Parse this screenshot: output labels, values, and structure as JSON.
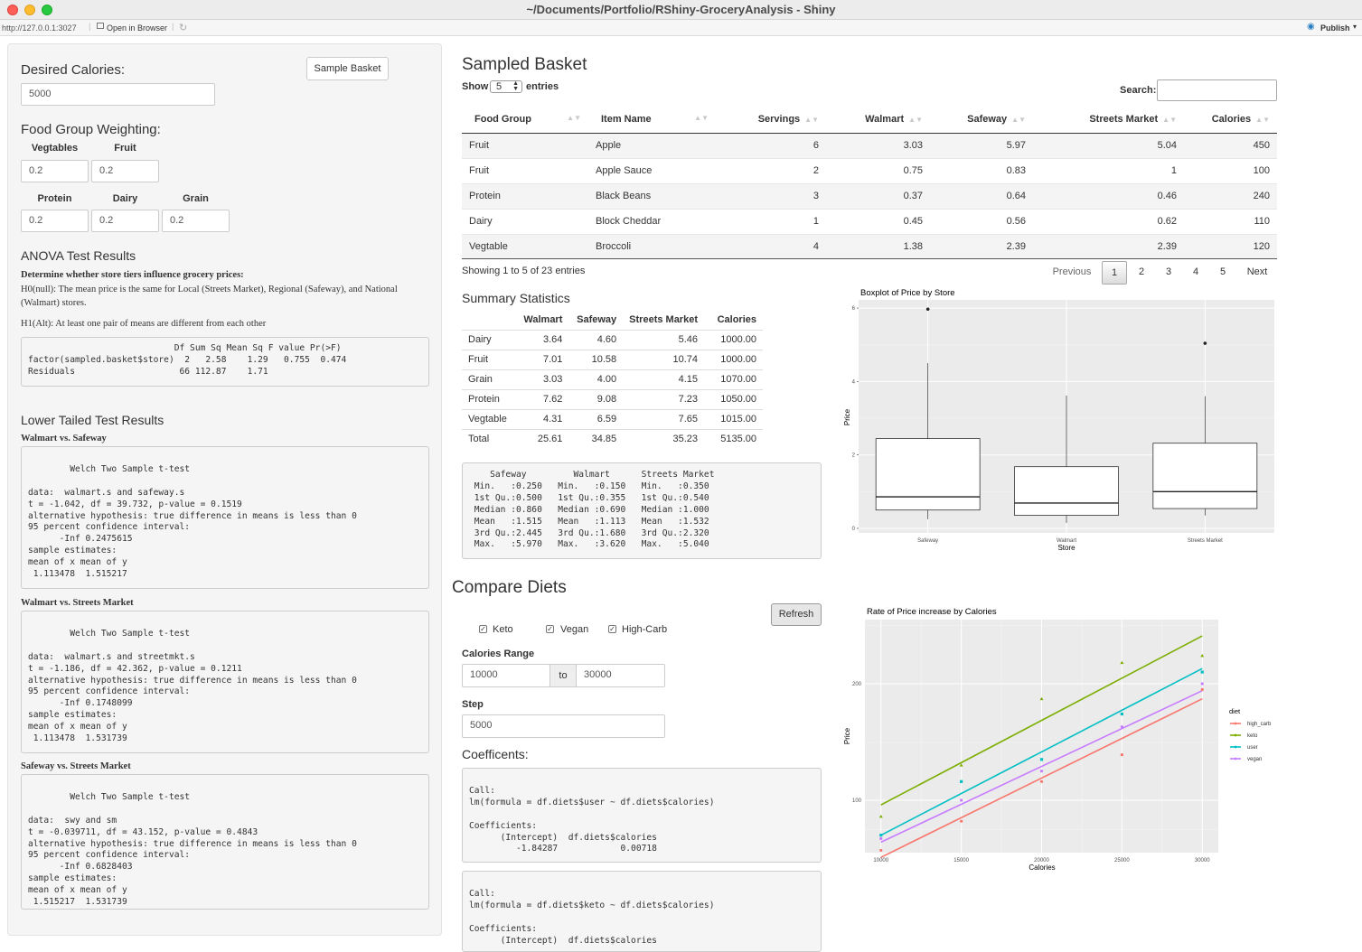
{
  "window": {
    "title": "~/Documents/Portfolio/RShiny-GroceryAnalysis - Shiny"
  },
  "toolbar": {
    "url": "http://127.0.0.1:3027",
    "open_browser": "Open in Browser",
    "publish": "Publish"
  },
  "sidebar": {
    "desired_calories_label": "Desired Calories:",
    "desired_calories_value": "5000",
    "sample_basket_button": "Sample Basket",
    "food_group_heading": "Food Group Weighting:",
    "weights": [
      {
        "label": "Vegtables",
        "value": "0.2"
      },
      {
        "label": "Fruit",
        "value": "0.2"
      },
      {
        "label": "Protein",
        "value": "0.2"
      },
      {
        "label": "Dairy",
        "value": "0.2"
      },
      {
        "label": "Grain",
        "value": "0.2"
      }
    ],
    "anova_heading": "ANOVA Test Results",
    "anova_question": "Determine whether store tiers influence grocery prices:",
    "anova_h0": "H0(null): The mean price is the same for Local (Streets Market), Regional (Safeway), and National (Walmart) stores.",
    "anova_h1": "H1(Alt): At least one pair of means are different from each other",
    "anova_output": "                            Df Sum Sq Mean Sq F value Pr(>F)\nfactor(sampled.basket$store)  2   2.58    1.29   0.755  0.474\nResiduals                    66 112.87    1.71",
    "lower_tailed_heading": "Lower Tailed Test Results",
    "tests": [
      {
        "title": "Walmart vs. Safeway",
        "output": "\n        Welch Two Sample t-test\n\ndata:  walmart.s and safeway.s\nt = -1.042, df = 39.732, p-value = 0.1519\nalternative hypothesis: true difference in means is less than 0\n95 percent confidence interval:\n      -Inf 0.2475615\nsample estimates:\nmean of x mean of y\n 1.113478  1.515217"
      },
      {
        "title": "Walmart vs. Streets Market",
        "output": "\n        Welch Two Sample t-test\n\ndata:  walmart.s and streetmkt.s\nt = -1.186, df = 42.362, p-value = 0.1211\nalternative hypothesis: true difference in means is less than 0\n95 percent confidence interval:\n      -Inf 0.1748099\nsample estimates:\nmean of x mean of y\n 1.113478  1.531739"
      },
      {
        "title": "Safeway vs. Streets Market",
        "output": "\n        Welch Two Sample t-test\n\ndata:  swy and sm\nt = -0.039711, df = 43.152, p-value = 0.4843\nalternative hypothesis: true difference in means is less than 0\n95 percent confidence interval:\n      -Inf 0.6828403\nsample estimates:\nmean of x mean of y\n 1.515217  1.531739"
      }
    ]
  },
  "basket": {
    "heading": "Sampled Basket",
    "show_label": "Show",
    "show_value": "5",
    "entries_label": "entries",
    "search_label": "Search:",
    "columns": [
      "Food Group",
      "Item Name",
      "Servings",
      "Walmart",
      "Safeway",
      "Streets Market",
      "Calories"
    ],
    "rows": [
      [
        "Fruit",
        "Apple",
        "6",
        "3.03",
        "5.97",
        "5.04",
        "450"
      ],
      [
        "Fruit",
        "Apple Sauce",
        "2",
        "0.75",
        "0.83",
        "1",
        "100"
      ],
      [
        "Protein",
        "Black Beans",
        "3",
        "0.37",
        "0.64",
        "0.46",
        "240"
      ],
      [
        "Dairy",
        "Block Cheddar",
        "1",
        "0.45",
        "0.56",
        "0.62",
        "110"
      ],
      [
        "Vegtable",
        "Broccoli",
        "4",
        "1.38",
        "2.39",
        "2.39",
        "120"
      ]
    ],
    "info": "Showing 1 to 5 of 23 entries",
    "pagination": {
      "previous": "Previous",
      "pages": [
        "1",
        "2",
        "3",
        "4",
        "5"
      ],
      "next": "Next",
      "current": "1"
    }
  },
  "summary": {
    "heading": "Summary Statistics",
    "columns": [
      "",
      "Walmart",
      "Safeway",
      "Streets Market",
      "Calories"
    ],
    "rows": [
      [
        "Dairy",
        "3.64",
        "4.60",
        "5.46",
        "1000.00"
      ],
      [
        "Fruit",
        "7.01",
        "10.58",
        "10.74",
        "1000.00"
      ],
      [
        "Grain",
        "3.03",
        "4.00",
        "4.15",
        "1070.00"
      ],
      [
        "Protein",
        "7.62",
        "9.08",
        "7.23",
        "1050.00"
      ],
      [
        "Vegtable",
        "4.31",
        "6.59",
        "7.65",
        "1015.00"
      ],
      [
        "Total",
        "25.61",
        "34.85",
        "35.23",
        "5135.00"
      ]
    ],
    "output": "    Safeway         Walmart      Streets Market\n Min.   :0.250   Min.   :0.150   Min.   :0.350\n 1st Qu.:0.500   1st Qu.:0.355   1st Qu.:0.540\n Median :0.860   Median :0.690   Median :1.000\n Mean   :1.515   Mean   :1.113   Mean   :1.532\n 3rd Qu.:2.445   3rd Qu.:1.680   3rd Qu.:2.320\n Max.   :5.970   Max.   :3.620   Max.   :5.040"
  },
  "diets": {
    "heading": "Compare Diets",
    "refresh_button": "Refresh",
    "checkboxes": [
      {
        "label": "Keto",
        "checked": true
      },
      {
        "label": "Vegan",
        "checked": true
      },
      {
        "label": "High-Carb",
        "checked": true
      }
    ],
    "calories_range_label": "Calories Range",
    "range_from": "10000",
    "range_to_label": "to",
    "range_to": "30000",
    "step_label": "Step",
    "step_value": "5000",
    "coefficients_heading": "Coefficents:",
    "coef_outputs": [
      "\nCall:\nlm(formula = df.diets$user ~ df.diets$calories)\n\nCoefficients:\n      (Intercept)  df.diets$calories\n         -1.84287            0.00718",
      "\nCall:\nlm(formula = df.diets$keto ~ df.diets$calories)\n\nCoefficients:\n      (Intercept)  df.diets$calories"
    ]
  },
  "chart_data": [
    {
      "type": "boxplot",
      "title": "Boxplot of Price by Store",
      "xlabel": "Store",
      "ylabel": "Price",
      "categories": [
        "Safeway",
        "Walmart",
        "Streets Market"
      ],
      "ylim": [
        0,
        6.1
      ],
      "yticks": [
        0,
        2,
        4,
        6
      ],
      "boxes": [
        {
          "name": "Safeway",
          "whisker_low": 0.25,
          "q1": 0.5,
          "median": 0.86,
          "q3": 2.445,
          "whisker_high": 4.5,
          "outliers": [
            5.97
          ]
        },
        {
          "name": "Walmart",
          "whisker_low": 0.15,
          "q1": 0.355,
          "median": 0.69,
          "q3": 1.68,
          "whisker_high": 3.62,
          "outliers": []
        },
        {
          "name": "Streets Market",
          "whisker_low": 0.35,
          "q1": 0.54,
          "median": 1.0,
          "q3": 2.32,
          "whisker_high": 3.6,
          "outliers": [
            5.04
          ]
        }
      ],
      "background": "#ebebeb"
    },
    {
      "type": "scatter",
      "title": "Rate of Price increase by Calories",
      "xlabel": "Calories",
      "ylabel": "Price",
      "xlim": [
        9000,
        31000
      ],
      "ylim": [
        55,
        255
      ],
      "xticks": [
        10000,
        15000,
        20000,
        25000,
        30000
      ],
      "yticks": [
        100,
        200
      ],
      "legend_title": "diet",
      "legend_position": "right",
      "series": [
        {
          "name": "high_carb",
          "color": "#F8766D",
          "points": [
            [
              10000,
              57
            ],
            [
              15000,
              82
            ],
            [
              20000,
              116
            ],
            [
              25000,
              139
            ],
            [
              30000,
              195
            ]
          ],
          "line": [
            [
              10000,
              51
            ],
            [
              30000,
              187
            ]
          ]
        },
        {
          "name": "keto",
          "color": "#7CAE00",
          "points": [
            [
              10000,
              86
            ],
            [
              15000,
              130
            ],
            [
              20000,
              187
            ],
            [
              25000,
              218
            ],
            [
              30000,
              224
            ]
          ],
          "line": [
            [
              10000,
              96
            ],
            [
              30000,
              241
            ]
          ]
        },
        {
          "name": "user",
          "color": "#00BFC4",
          "points": [
            [
              10000,
              70
            ],
            [
              15000,
              116
            ],
            [
              20000,
              135
            ],
            [
              25000,
              174
            ],
            [
              30000,
              210
            ]
          ],
          "line": [
            [
              10000,
              70
            ],
            [
              30000,
              213
            ]
          ]
        },
        {
          "name": "vegan",
          "color": "#C77CFF",
          "points": [
            [
              10000,
              67
            ],
            [
              15000,
              100
            ],
            [
              20000,
              125
            ],
            [
              25000,
              163
            ],
            [
              30000,
              200
            ]
          ],
          "line": [
            [
              10000,
              64
            ],
            [
              30000,
              194
            ]
          ]
        }
      ]
    }
  ]
}
